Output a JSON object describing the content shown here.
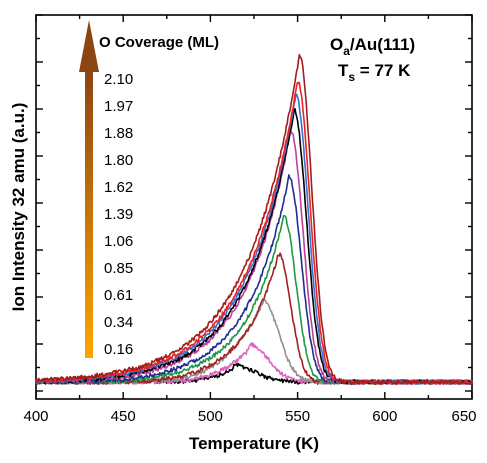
{
  "chart_data": {
    "type": "line",
    "xlabel": "Temperature (K)",
    "ylabel": "Ion Intensity 32 amu (a.u.)",
    "xlim": [
      400,
      650
    ],
    "x_ticks": [
      "400",
      "450",
      "500",
      "550",
      "600",
      "650"
    ],
    "ylim": [
      0,
      1
    ],
    "y_ticks_labeled": false,
    "grid": false,
    "legend_title": "O Coverage (ML)",
    "legend_position": "top-left",
    "legend_entries": [
      "2.10",
      "1.97",
      "1.88",
      "1.80",
      "1.62",
      "1.39",
      "1.06",
      "0.85",
      "0.61",
      "0.34",
      "0.16"
    ],
    "annotation": {
      "line1_main": "O",
      "line1_sub": "a",
      "line1_rest": "/Au(111)",
      "line2_main": "T",
      "line2_sub": "s",
      "line2_rest": " = 77 K"
    },
    "colors": {
      "arrow_top": "#8B4513",
      "arrow_bottom": "#FFA500"
    },
    "series": [
      {
        "coverage": "2.10",
        "color": "#a01d1d",
        "peak_x": 551,
        "peak_y": 0.955,
        "onset_x": 350,
        "leading_width": 30,
        "fall_width": 7
      },
      {
        "coverage": "1.97",
        "color": "#ee2222",
        "peak_x": 550,
        "peak_y": 0.88,
        "onset_x": 360,
        "leading_width": 29,
        "fall_width": 7
      },
      {
        "coverage": "1.88",
        "color": "#3f6fd0",
        "peak_x": 549,
        "peak_y": 0.84,
        "onset_x": 370,
        "leading_width": 28,
        "fall_width": 7
      },
      {
        "coverage": "1.80",
        "color": "#000000",
        "peak_x": 548,
        "peak_y": 0.795,
        "onset_x": 380,
        "leading_width": 27,
        "fall_width": 7
      },
      {
        "coverage": "1.62",
        "color": "#c0409a",
        "peak_x": 546,
        "peak_y": 0.735,
        "onset_x": 390,
        "leading_width": 26,
        "fall_width": 7
      },
      {
        "coverage": "1.39",
        "color": "#1f2f8f",
        "peak_x": 545,
        "peak_y": 0.6,
        "onset_x": 400,
        "leading_width": 24,
        "fall_width": 7
      },
      {
        "coverage": "1.06",
        "color": "#1e9a46",
        "peak_x": 542,
        "peak_y": 0.485,
        "onset_x": 410,
        "leading_width": 22,
        "fall_width": 7
      },
      {
        "coverage": "0.85",
        "color": "#a52020",
        "peak_x": 539,
        "peak_y": 0.375,
        "onset_x": 430,
        "leading_width": 20,
        "fall_width": 7
      },
      {
        "coverage": "0.61",
        "color": "#909090",
        "peak_x": 530,
        "peak_y": 0.24,
        "onset_x": 450,
        "leading_width": 22,
        "fall_width": 9
      },
      {
        "coverage": "0.34",
        "color": "#e060c0",
        "peak_x": 522,
        "peak_y": 0.11,
        "onset_x": 460,
        "leading_width": 22,
        "fall_width": 11
      },
      {
        "coverage": "0.16",
        "color": "#000000",
        "peak_x": 513,
        "peak_y": 0.05,
        "onset_x": 460,
        "leading_width": 20,
        "fall_width": 12
      }
    ]
  }
}
